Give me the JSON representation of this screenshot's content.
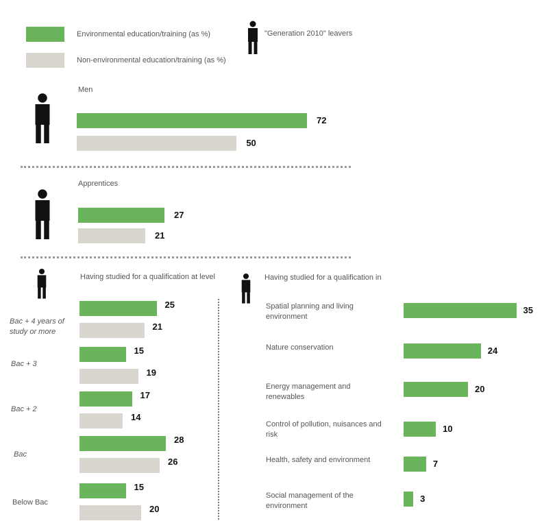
{
  "legend": {
    "env_label": "Environmental education/training (as %)",
    "nonenv_label": "Non-environmental education/training (as %)",
    "leavers_label": "\"Generation 2010\" leavers",
    "env_color": "#6ab55c",
    "nonenv_color": "#d9d5cf",
    "person_icon": "person-icon"
  },
  "sections": {
    "men": "Men",
    "apprentices": "Apprentices",
    "level_title": "Having studied for a qualification at level",
    "field_title": "Having studied for a qualification in"
  },
  "level_labels": {
    "bac4": "Bac + 4 years of study or more",
    "bac3": "Bac + 3",
    "bac2": "Bac + 2",
    "bac": "Bac",
    "below": "Below Bac"
  },
  "chart_data": [
    {
      "type": "bar",
      "title": "Men",
      "series": [
        {
          "name": "Environmental education/training (as %)",
          "values": [
            72
          ]
        },
        {
          "name": "Non-environmental education/training (as %)",
          "values": [
            50
          ]
        }
      ]
    },
    {
      "type": "bar",
      "title": "Apprentices",
      "series": [
        {
          "name": "Environmental education/training (as %)",
          "values": [
            27
          ]
        },
        {
          "name": "Non-environmental education/training (as %)",
          "values": [
            21
          ]
        }
      ]
    },
    {
      "type": "bar",
      "title": "Having studied for a qualification at level",
      "categories": [
        "Bac + 4 years of study or more",
        "Bac + 3",
        "Bac + 2",
        "Bac",
        "Below Bac"
      ],
      "series": [
        {
          "name": "Environmental education/training (as %)",
          "values": [
            25,
            15,
            17,
            28,
            15
          ]
        },
        {
          "name": "Non-environmental education/training (as %)",
          "values": [
            21,
            19,
            14,
            26,
            20
          ]
        }
      ]
    },
    {
      "type": "bar",
      "title": "Having studied for a qualification in",
      "categories": [
        "Spatial planning and living environment",
        "Nature conservation",
        "Energy management and renewables",
        "Control of pollution, nuisances and risk",
        "Health, safety and environment",
        "Social management of the environment"
      ],
      "series": [
        {
          "name": "Environmental education/training (as %)",
          "values": [
            35,
            24,
            20,
            10,
            7,
            3
          ]
        }
      ]
    }
  ]
}
